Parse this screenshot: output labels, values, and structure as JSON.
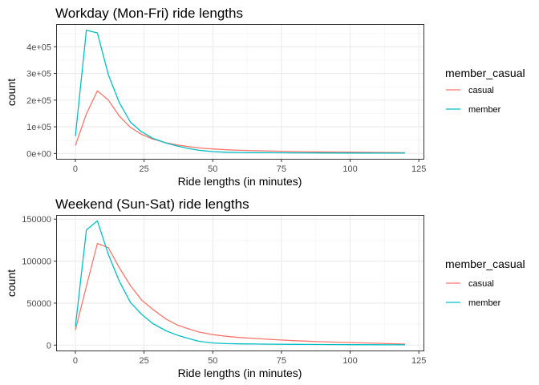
{
  "chart_data": [
    {
      "type": "line",
      "title": "Workday (Mon-Fri) ride lengths",
      "xlabel": "Ride lengths (in minutes)",
      "ylabel": "count",
      "xlim": [
        -7,
        127
      ],
      "ylim": [
        -23000,
        485000
      ],
      "x_ticks": [
        0,
        25,
        50,
        75,
        100,
        125
      ],
      "x_tick_labels": [
        "0",
        "25",
        "50",
        "75",
        "100",
        "125"
      ],
      "y_ticks": [
        0,
        100000,
        200000,
        300000,
        400000
      ],
      "y_tick_labels": [
        "0e+00",
        "1e+05",
        "2e+05",
        "3e+05",
        "4e+05"
      ],
      "grid": true,
      "legend": {
        "title": "member_casual",
        "position": "right"
      },
      "x": [
        0,
        4,
        8,
        12,
        16,
        20,
        24,
        28,
        33,
        37,
        41,
        45,
        50,
        55,
        60,
        66,
        72,
        80,
        90,
        100,
        110,
        120
      ],
      "series": [
        {
          "name": "casual",
          "color": "#F8766D",
          "values": [
            30000,
            148000,
            235000,
            200000,
            140000,
            98000,
            72000,
            55000,
            40000,
            32000,
            26000,
            21000,
            17000,
            14000,
            12000,
            10500,
            9000,
            7500,
            6000,
            5000,
            4000,
            3000
          ]
        },
        {
          "name": "member",
          "color": "#00BFC4",
          "values": [
            65000,
            462000,
            452000,
            295000,
            190000,
            118000,
            82000,
            58000,
            39000,
            28000,
            19000,
            12000,
            7000,
            4800,
            3800,
            3200,
            2800,
            2400,
            2000,
            1700,
            1400,
            1200
          ]
        }
      ]
    },
    {
      "type": "line",
      "title": "Weekend (Sun-Sat) ride lengths",
      "xlabel": "Ride lengths (in minutes)",
      "ylabel": "count",
      "xlim": [
        -7,
        127
      ],
      "ylim": [
        -7400,
        155000
      ],
      "x_ticks": [
        0,
        25,
        50,
        75,
        100,
        125
      ],
      "x_tick_labels": [
        "0",
        "25",
        "50",
        "75",
        "100",
        "125"
      ],
      "y_ticks": [
        0,
        50000,
        100000,
        150000
      ],
      "y_tick_labels": [
        "0",
        "50000",
        "100000",
        "150000"
      ],
      "grid": true,
      "legend": {
        "title": "member_casual",
        "position": "right"
      },
      "x": [
        0,
        4,
        8,
        12,
        16,
        20,
        24,
        28,
        33,
        37,
        41,
        45,
        50,
        55,
        60,
        66,
        72,
        80,
        90,
        100,
        110,
        120
      ],
      "series": [
        {
          "name": "casual",
          "color": "#F8766D",
          "values": [
            18000,
            70000,
            121000,
            116000,
            92000,
            71000,
            54000,
            43000,
            31000,
            24000,
            19500,
            15500,
            12500,
            10500,
            9000,
            7800,
            6500,
            5200,
            4000,
            3000,
            2200,
            1200
          ]
        },
        {
          "name": "member",
          "color": "#00BFC4",
          "values": [
            22000,
            137000,
            148000,
            108000,
            76000,
            51000,
            37000,
            26000,
            17000,
            12000,
            8000,
            4500,
            2500,
            1800,
            1500,
            1300,
            1100,
            900,
            700,
            500,
            400,
            300
          ]
        }
      ]
    }
  ]
}
